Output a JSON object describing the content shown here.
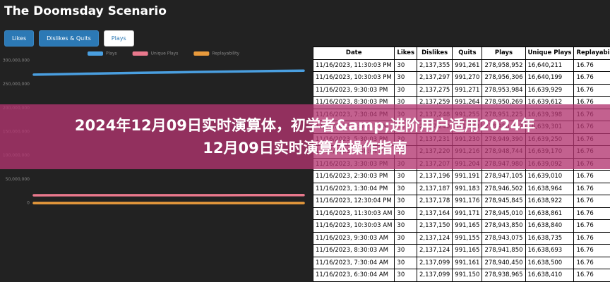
{
  "header": {
    "title": "The Doomsday Scenario"
  },
  "tabs": [
    {
      "label": "Likes",
      "active": false
    },
    {
      "label": "Dislikes & Quits",
      "active": false
    },
    {
      "label": "Plays",
      "active": true
    }
  ],
  "chart_data": {
    "type": "line",
    "series": [
      {
        "name": "Plays",
        "color": "#4a9fe0",
        "values": [
          270500000,
          271500000,
          272500000,
          273500000,
          274300000,
          275200000,
          276000000,
          276800000,
          277600000,
          278300000,
          278900000
        ]
      },
      {
        "name": "Unique Plays",
        "color": "#e8788c",
        "values": [
          16400000,
          16450000,
          16500000,
          16530000,
          16560000,
          16580000,
          16600000,
          16610000,
          16620000,
          16630000,
          16640000
        ]
      },
      {
        "name": "Replayability",
        "color": "#e89a3c",
        "values": [
          16.5,
          16.55,
          16.6,
          16.62,
          16.65,
          16.68,
          16.7,
          16.72,
          16.74,
          16.75,
          16.76
        ]
      }
    ],
    "ylim": [
      0,
      300000000
    ],
    "yticks": [
      {
        "value": 0,
        "label": "0"
      },
      {
        "value": 50000000,
        "label": "50,000,000"
      },
      {
        "value": 100000000,
        "label": "100,000,000"
      },
      {
        "value": 150000000,
        "label": "150,000,000"
      },
      {
        "value": 200000000,
        "label": "200,000,000"
      },
      {
        "value": 250000000,
        "label": "250,000,000"
      },
      {
        "value": 300000000,
        "label": "300,000,000"
      }
    ],
    "grid": false
  },
  "table": {
    "columns": [
      "Date",
      "Likes",
      "Dislikes",
      "Quits",
      "Plays",
      "Unique Plays",
      "Replayability"
    ],
    "rows": [
      [
        "11/16/2023, 11:30:03 PM",
        "30",
        "2,137,355",
        "991,261",
        "278,958,952",
        "16,640,211",
        "16.76"
      ],
      [
        "11/16/2023, 10:30:03 PM",
        "30",
        "2,137,297",
        "991,270",
        "278,956,306",
        "16,640,199",
        "16.76"
      ],
      [
        "11/16/2023, 9:30:03 PM",
        "30",
        "2,137,275",
        "991,271",
        "278,953,984",
        "16,639,929",
        "16.76"
      ],
      [
        "11/16/2023, 8:30:03 PM",
        "30",
        "2,137,259",
        "991,264",
        "278,950,269",
        "16,639,612",
        "16.76"
      ],
      [
        "11/16/2023, 7:30:04 PM",
        "30",
        "2,137,248",
        "991,255",
        "278,951,225",
        "16,639,398",
        "16.76"
      ],
      [
        "11/16/2023, 6:30:03 PM",
        "30",
        "2,137,240",
        "991,243",
        "278,950,012",
        "16,639,301",
        "16.76"
      ],
      [
        "11/16/2023, 5:30:03 PM",
        "30",
        "2,137,231",
        "991,230",
        "278,949,390",
        "16,639,250",
        "16.76"
      ],
      [
        "11/16/2023, 4:30:04 PM",
        "30",
        "2,137,220",
        "991,216",
        "278,948,744",
        "16,639,170",
        "16.76"
      ],
      [
        "11/16/2023, 3:30:03 PM",
        "30",
        "2,137,207",
        "991,204",
        "278,947,980",
        "16,639,092",
        "16.76"
      ],
      [
        "11/16/2023, 2:30:03 PM",
        "30",
        "2,137,196",
        "991,191",
        "278,947,105",
        "16,639,010",
        "16.76"
      ],
      [
        "11/16/2023, 1:30:04 PM",
        "30",
        "2,137,187",
        "991,183",
        "278,946,502",
        "16,638,964",
        "16.76"
      ],
      [
        "11/16/2023, 12:30:04 PM",
        "30",
        "2,137,178",
        "991,176",
        "278,945,845",
        "16,638,922",
        "16.76"
      ],
      [
        "11/16/2023, 11:30:03 AM",
        "30",
        "2,137,164",
        "991,171",
        "278,945,010",
        "16,638,861",
        "16.76"
      ],
      [
        "11/16/2023, 10:30:03 AM",
        "30",
        "2,137,150",
        "991,165",
        "278,943,850",
        "16,638,840",
        "16.76"
      ],
      [
        "11/16/2023, 9:30:03 AM",
        "30",
        "2,137,124",
        "991,155",
        "278,943,075",
        "16,638,735",
        "16.76"
      ],
      [
        "11/16/2023, 8:30:03 AM",
        "30",
        "2,137,124",
        "991,165",
        "278,941,850",
        "16,638,693",
        "16.76"
      ],
      [
        "11/16/2023, 7:30:04 AM",
        "30",
        "2,137,099",
        "991,161",
        "278,940,450",
        "16,638,500",
        "16.76"
      ],
      [
        "11/16/2023, 6:30:04 AM",
        "30",
        "2,137,099",
        "991,150",
        "278,938,965",
        "16,638,410",
        "16.76"
      ]
    ]
  },
  "banner": {
    "text": "2024年12月09日实时演算体，初学者&amp;进阶用户适用2024年12月09日实时演算体操作指南"
  }
}
